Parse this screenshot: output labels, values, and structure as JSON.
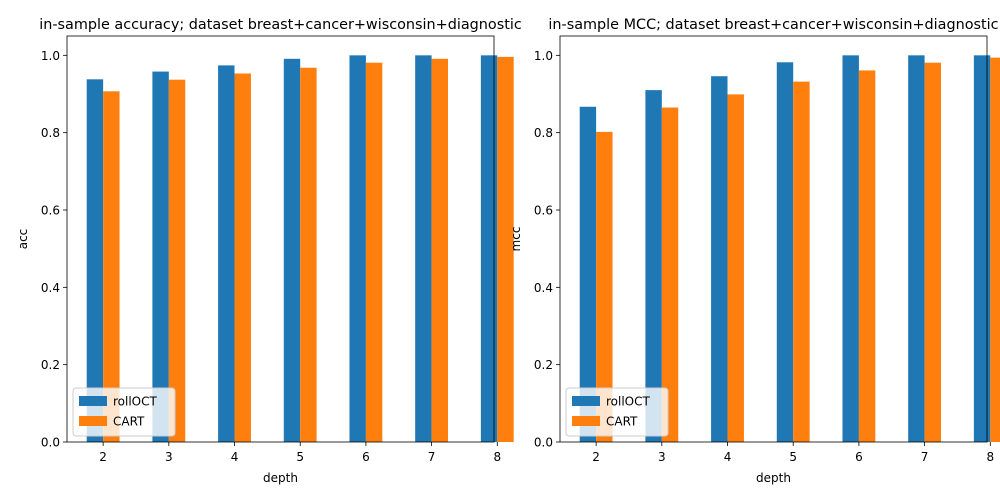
{
  "chart_data": [
    {
      "type": "bar",
      "title": "in-sample accuracy; dataset breast+cancer+wisconsin+diagnostic",
      "xlabel": "depth",
      "ylabel": "acc",
      "categories": [
        "2",
        "3",
        "4",
        "5",
        "6",
        "7",
        "8"
      ],
      "ylim": [
        0,
        1.05
      ],
      "yticks": [
        "0.0",
        "0.2",
        "0.4",
        "0.6",
        "0.8",
        "1.0"
      ],
      "grid": false,
      "legend": "lower-left",
      "series": [
        {
          "name": "rollOCT",
          "color": "#1f77b4",
          "values": [
            0.938,
            0.958,
            0.974,
            0.991,
            1.0,
            1.0,
            1.0
          ]
        },
        {
          "name": "CART",
          "color": "#ff7f0e",
          "values": [
            0.907,
            0.937,
            0.953,
            0.968,
            0.981,
            0.991,
            0.996
          ]
        }
      ]
    },
    {
      "type": "bar",
      "title": "in-sample MCC; dataset breast+cancer+wisconsin+diagnostic",
      "xlabel": "depth",
      "ylabel": "mcc",
      "categories": [
        "2",
        "3",
        "4",
        "5",
        "6",
        "7",
        "8"
      ],
      "ylim": [
        0,
        1.05
      ],
      "yticks": [
        "0.0",
        "0.2",
        "0.4",
        "0.6",
        "0.8",
        "1.0"
      ],
      "grid": false,
      "legend": "lower-left",
      "series": [
        {
          "name": "rollOCT",
          "color": "#1f77b4",
          "values": [
            0.867,
            0.91,
            0.946,
            0.982,
            1.0,
            1.0,
            1.0
          ]
        },
        {
          "name": "CART",
          "color": "#ff7f0e",
          "values": [
            0.802,
            0.865,
            0.899,
            0.932,
            0.961,
            0.981,
            0.994
          ]
        }
      ]
    }
  ]
}
